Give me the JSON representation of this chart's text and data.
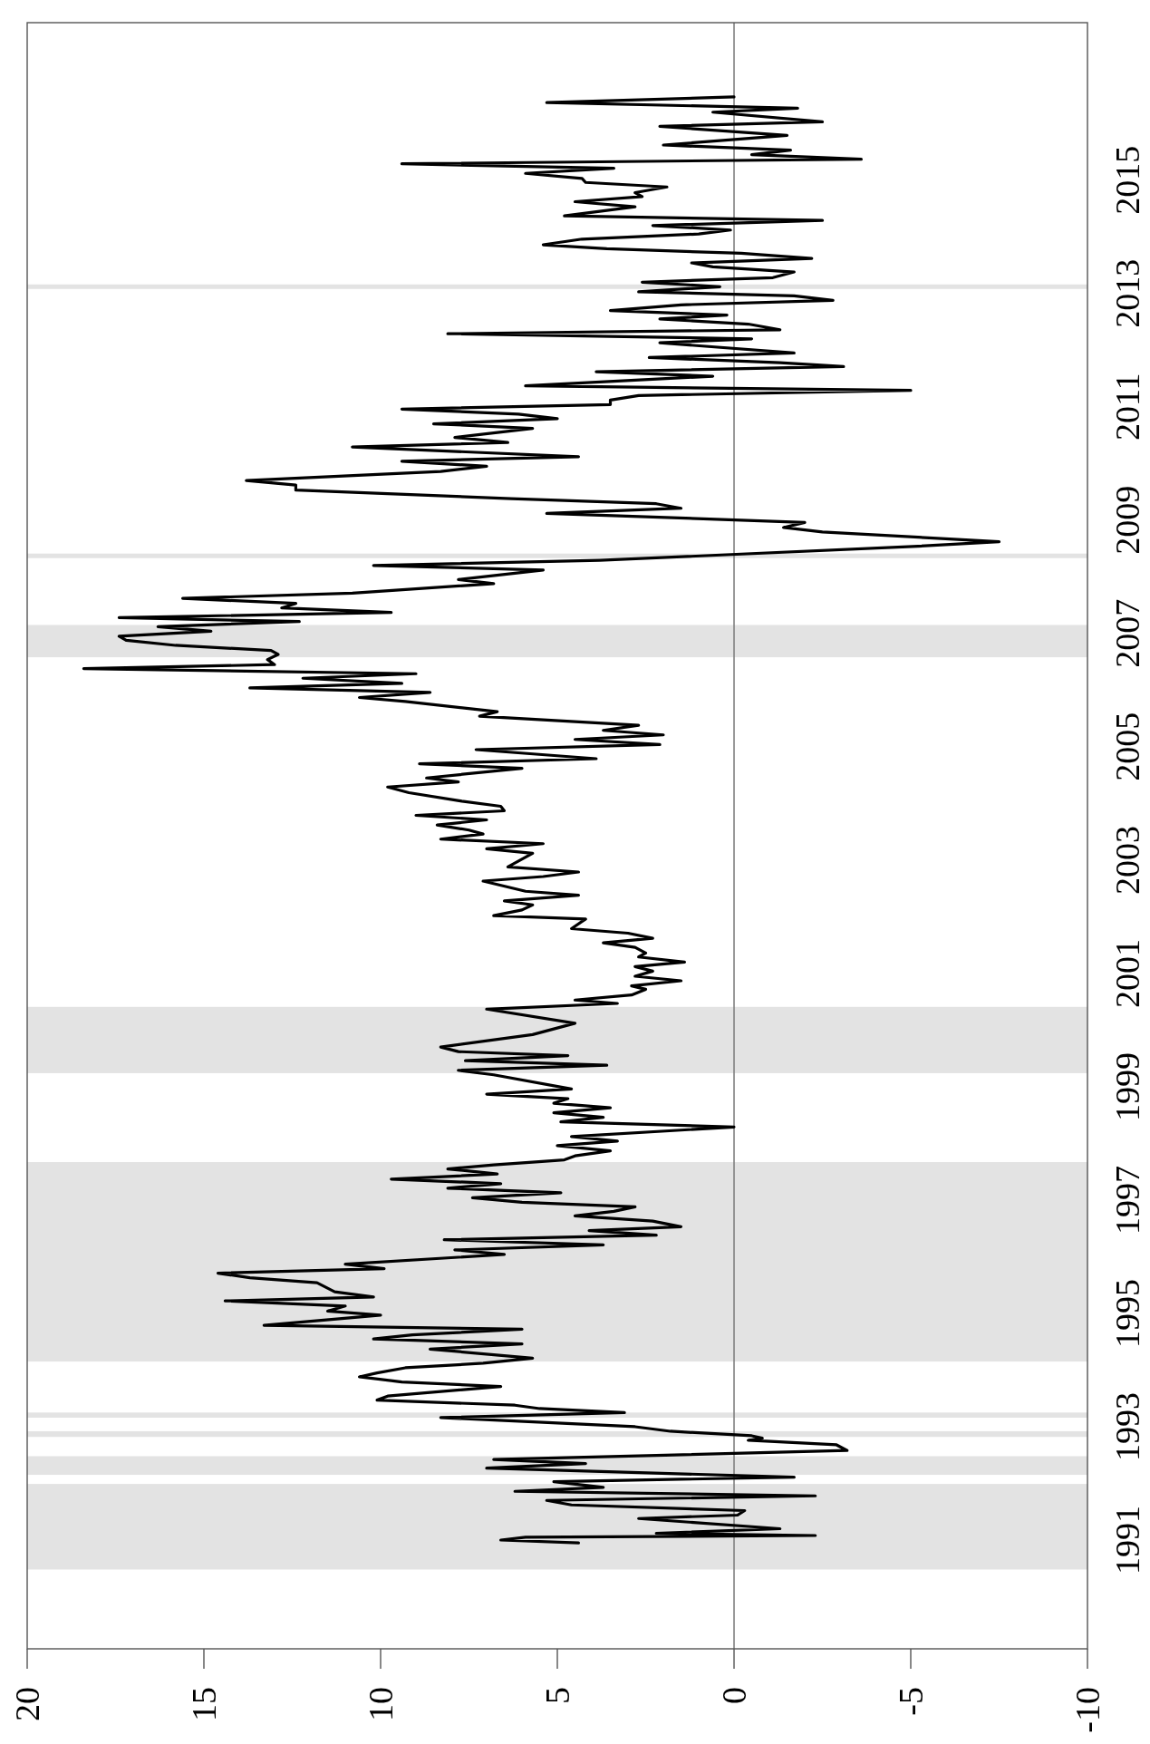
{
  "chart_data": {
    "type": "line",
    "xlim": [
      20,
      -10
    ],
    "ylim": [
      1989.58,
      2018.28
    ],
    "xticks": [
      20,
      15,
      10,
      5,
      0,
      -5,
      -10
    ],
    "yticks": [
      {
        "value": 1991.5,
        "label": "1991"
      },
      {
        "value": 1993.5,
        "label": "1993"
      },
      {
        "value": 1995.5,
        "label": "1995"
      },
      {
        "value": 1997.5,
        "label": "1997"
      },
      {
        "value": 1999.5,
        "label": "1999"
      },
      {
        "value": 2001.5,
        "label": "2001"
      },
      {
        "value": 2003.5,
        "label": "2003"
      },
      {
        "value": 2005.5,
        "label": "2005"
      },
      {
        "value": 2007.5,
        "label": "2007"
      },
      {
        "value": 2009.5,
        "label": "2009"
      },
      {
        "value": 2011.5,
        "label": "2011"
      },
      {
        "value": 2013.5,
        "label": "2013"
      },
      {
        "value": 2015.5,
        "label": "2015"
      }
    ],
    "ref_lines": [
      {
        "axis": "x",
        "value": 0,
        "color": "#808080"
      }
    ],
    "bands": [
      {
        "axis": "y",
        "from": 1990.98,
        "to": 1992.49,
        "color": "#e3e3e3"
      },
      {
        "axis": "y",
        "from": 1992.65,
        "to": 1992.98,
        "color": "#e3e3e3"
      },
      {
        "axis": "y",
        "from": 1993.32,
        "to": 1993.42,
        "color": "#e3e3e3"
      },
      {
        "axis": "y",
        "from": 1993.66,
        "to": 1993.75,
        "color": "#e3e3e3"
      },
      {
        "axis": "y",
        "from": 1994.65,
        "to": 1998.17,
        "color": "#e3e3e3"
      },
      {
        "axis": "y",
        "from": 1999.74,
        "to": 2000.91,
        "color": "#e3e3e3"
      },
      {
        "axis": "y",
        "from": 2007.08,
        "to": 2007.65,
        "color": "#e3e3e3"
      },
      {
        "axis": "y",
        "from": 2008.83,
        "to": 2008.91,
        "color": "#e3e3e3"
      },
      {
        "axis": "y",
        "from": 2013.58,
        "to": 2013.66,
        "color": "#e3e3e3"
      }
    ],
    "series": [
      {
        "color": "#000000",
        "x": [
          4.4,
          6.6,
          5.9,
          -2.3,
          2.2,
          -1.3,
          2.7,
          -0.1,
          -0.3,
          4.6,
          5.3,
          -2.3,
          6.2,
          3.7,
          5.1,
          -1.7,
          7.0,
          4.2,
          6.8,
          -3.2,
          -2.9,
          -0.4,
          -0.8,
          -0.5,
          1.8,
          2.8,
          8.3,
          3.1,
          5.5,
          6.2,
          10.1,
          9.8,
          6.6,
          9.4,
          10.6,
          10.1,
          9.3,
          7.1,
          5.7,
          8.6,
          6.0,
          10.2,
          9.1,
          6.0,
          13.3,
          10.0,
          11.5,
          11.0,
          14.4,
          10.2,
          11.3,
          11.8,
          13.7,
          14.6,
          9.9,
          11.0,
          6.5,
          7.9,
          3.7,
          8.2,
          2.2,
          4.1,
          1.5,
          2.3,
          4.5,
          3.4,
          2.8,
          6.0,
          7.4,
          4.9,
          8.1,
          6.6,
          9.7,
          6.7,
          8.1,
          6.8,
          4.8,
          4.5,
          3.5,
          5.0,
          3.3,
          4.6,
          0.0,
          4.9,
          3.7,
          5.1,
          3.5,
          5.1,
          4.7,
          7.0,
          4.6,
          6.8,
          7.8,
          3.6,
          7.6,
          4.7,
          7.8,
          8.3,
          5.7,
          4.5,
          7.0,
          3.3,
          4.5,
          2.9,
          2.5,
          2.9,
          1.5,
          2.8,
          2.3,
          2.8,
          1.4,
          2.7,
          2.5,
          2.8,
          3.7,
          2.3,
          3.0,
          4.6,
          4.2,
          6.8,
          6.0,
          5.7,
          6.5,
          4.4,
          5.9,
          7.1,
          5.4,
          4.4,
          6.4,
          5.7,
          7.0,
          5.4,
          8.3,
          7.1,
          7.5,
          8.4,
          7.0,
          9.0,
          6.5,
          6.6,
          7.7,
          9.2,
          9.8,
          7.8,
          8.7,
          6.0,
          8.9,
          3.9,
          7.3,
          2.1,
          4.5,
          2.0,
          3.7,
          2.7,
          7.2,
          6.7,
          9.3,
          10.6,
          8.6,
          13.7,
          9.4,
          12.2,
          9.0,
          18.4,
          13.0,
          13.2,
          12.9,
          13.1,
          15.8,
          17.2,
          17.4,
          14.8,
          16.3,
          12.3,
          17.4,
          9.7,
          12.8,
          12.4,
          15.6,
          10.8,
          6.8,
          7.8,
          5.4,
          10.2,
          3.8,
          -5.2,
          -7.5,
          -2.5,
          -1.4,
          -2.0,
          5.3,
          1.5,
          2.2,
          6.3,
          12.4,
          12.4,
          13.8,
          8.3,
          7.0,
          9.4,
          4.4,
          10.8,
          6.4,
          7.9,
          5.7,
          8.5,
          5.0,
          6.1,
          9.4,
          3.5,
          3.5,
          2.7,
          -5.0,
          5.9,
          0.6,
          3.9,
          -3.1,
          -1.3,
          2.4,
          -1.7,
          2.1,
          -0.5,
          8.1,
          -1.3,
          -0.4,
          2.1,
          0.2,
          3.5,
          1.5,
          -2.8,
          -1.7,
          2.7,
          0.4,
          2.6,
          -1.1,
          -1.7,
          0.6,
          1.2,
          -2.2,
          -0.2,
          3.6,
          5.4,
          4.3,
          1.0,
          0.1,
          2.3,
          -2.5,
          4.8,
          2.8,
          4.5,
          2.6,
          2.8,
          1.9,
          4.2,
          4.3,
          5.9,
          3.4,
          9.4,
          -3.6,
          -0.5,
          -1.6,
          2.0,
          -1.5,
          2.1,
          -2.5,
          0.6,
          -1.8,
          5.3,
          0.0
        ],
        "values": [
          1991.45,
          1991.5,
          1991.55,
          1991.58,
          1991.62,
          1991.7,
          1991.88,
          1991.94,
          1992.02,
          1992.12,
          1992.2,
          1992.28,
          1992.36,
          1992.43,
          1992.53,
          1992.61,
          1992.77,
          1992.85,
          1992.92,
          1993.08,
          1993.18,
          1993.26,
          1993.3,
          1993.34,
          1993.42,
          1993.5,
          1993.66,
          1993.75,
          1993.82,
          1993.88,
          1993.97,
          1994.04,
          1994.21,
          1994.29,
          1994.38,
          1994.45,
          1994.54,
          1994.62,
          1994.71,
          1994.87,
          1994.96,
          1995.05,
          1995.12,
          1995.22,
          1995.29,
          1995.47,
          1995.54,
          1995.63,
          1995.72,
          1995.79,
          1995.88,
          1996.04,
          1996.13,
          1996.21,
          1996.29,
          1996.37,
          1996.54,
          1996.62,
          1996.71,
          1996.8,
          1996.88,
          1996.96,
          1997.03,
          1997.13,
          1997.22,
          1997.3,
          1997.38,
          1997.46,
          1997.54,
          1997.63,
          1997.71,
          1997.79,
          1997.87,
          1997.96,
          1998.05,
          1998.12,
          1998.21,
          1998.28,
          1998.37,
          1998.46,
          1998.54,
          1998.62,
          1998.79,
          1998.88,
          1998.96,
          1999.04,
          1999.13,
          1999.21,
          1999.29,
          1999.37,
          1999.46,
          1999.71,
          1999.79,
          1999.88,
          1999.96,
          2000.05,
          2000.12,
          2000.2,
          2000.42,
          2000.62,
          2000.87,
          2000.97,
          2001.03,
          2001.12,
          2001.22,
          2001.28,
          2001.37,
          2001.45,
          2001.54,
          2001.62,
          2001.7,
          2001.79,
          2001.86,
          2001.96,
          2002.04,
          2002.12,
          2002.21,
          2002.29,
          2002.46,
          2002.52,
          2002.62,
          2002.71,
          2002.78,
          2002.88,
          2002.95,
          2003.13,
          2003.21,
          2003.29,
          2003.38,
          2003.62,
          2003.7,
          2003.79,
          2003.87,
          2003.96,
          2004.03,
          2004.12,
          2004.21,
          2004.29,
          2004.37,
          2004.45,
          2004.54,
          2004.69,
          2004.79,
          2004.88,
          2004.95,
          2005.12,
          2005.2,
          2005.29,
          2005.45,
          2005.54,
          2005.63,
          2005.71,
          2005.79,
          2005.88,
          2006.04,
          2006.12,
          2006.3,
          2006.37,
          2006.46,
          2006.54,
          2006.62,
          2006.71,
          2006.79,
          2006.88,
          2006.95,
          2007.04,
          2007.13,
          2007.2,
          2007.29,
          2007.38,
          2007.45,
          2007.54,
          2007.62,
          2007.71,
          2007.78,
          2007.87,
          2007.95,
          2008.03,
          2008.12,
          2008.21,
          2008.38,
          2008.45,
          2008.62,
          2008.7,
          2008.79,
          2009.04,
          2009.12,
          2009.29,
          2009.37,
          2009.46,
          2009.62,
          2009.71,
          2009.79,
          2009.88,
          2010.03,
          2010.12,
          2010.2,
          2010.36,
          2010.45,
          2010.54,
          2010.62,
          2010.79,
          2010.87,
          2010.96,
          2011.12,
          2011.2,
          2011.29,
          2011.37,
          2011.46,
          2011.54,
          2011.62,
          2011.7,
          2011.79,
          2011.87,
          2012.04,
          2012.12,
          2012.21,
          2012.28,
          2012.37,
          2012.45,
          2012.63,
          2012.7,
          2012.79,
          2012.86,
          2012.96,
          2013.05,
          2013.12,
          2013.2,
          2013.3,
          2013.38,
          2013.46,
          2013.53,
          2013.62,
          2013.7,
          2013.78,
          2013.88,
          2013.97,
          2014.04,
          2014.12,
          2014.21,
          2014.29,
          2014.36,
          2014.46,
          2014.55,
          2014.62,
          2014.7,
          2014.79,
          2014.87,
          2015.03,
          2015.12,
          2015.21,
          2015.28,
          2015.38,
          2015.46,
          2015.53,
          2015.62,
          2015.71,
          2015.79,
          2015.87,
          2015.95,
          2016.03,
          2016.12,
          2016.29,
          2016.45,
          2016.53,
          2016.7,
          2016.77,
          2016.87,
          2016.97
        ]
      }
    ]
  }
}
